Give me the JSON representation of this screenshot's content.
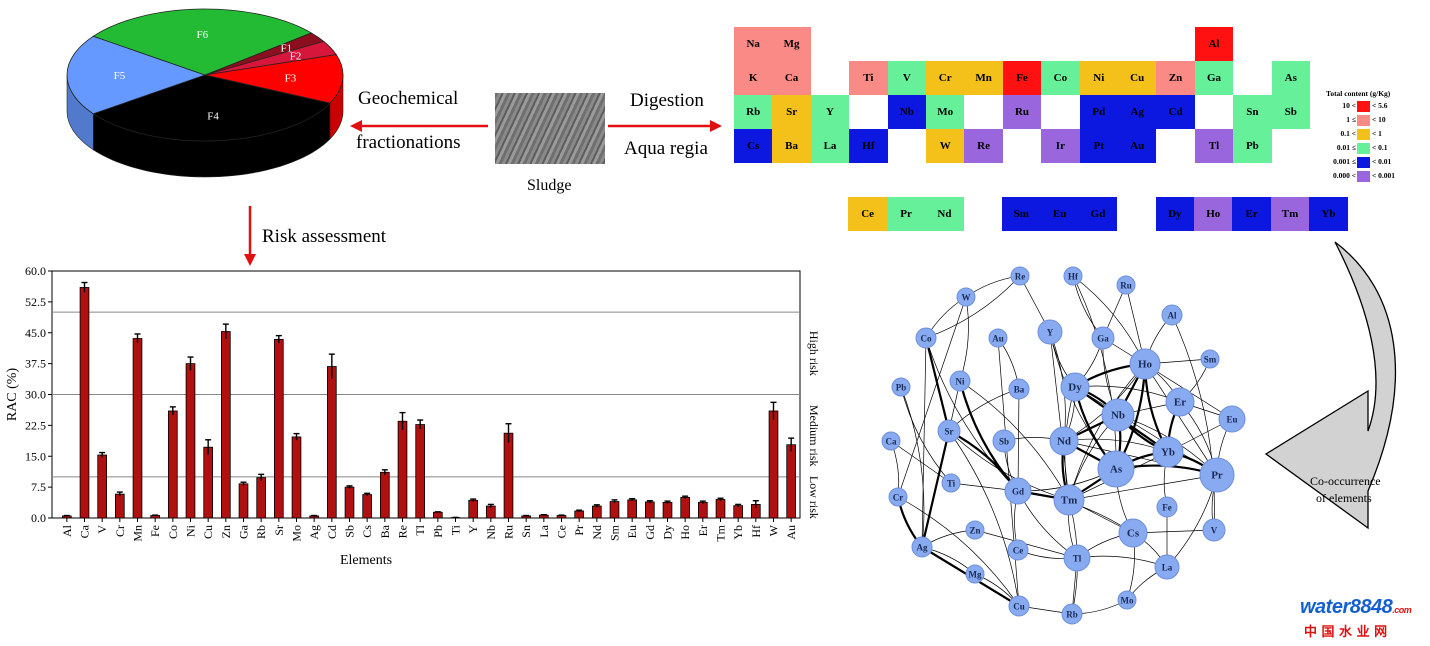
{
  "pie": {
    "slices": [
      {
        "label": "F1",
        "value": 2.5,
        "color": "#8b0f1f"
      },
      {
        "label": "F2",
        "value": 3.5,
        "color": "#d6163a"
      },
      {
        "label": "F3",
        "value": 12,
        "color": "#ff0000"
      },
      {
        "label": "F4",
        "value": 33,
        "color": "#000000"
      },
      {
        "label": "F5",
        "value": 20,
        "color": "#6699ff"
      },
      {
        "label": "F6",
        "value": 29,
        "color": "#22bb33"
      }
    ]
  },
  "flow": {
    "geochem_line1": "Geochemical",
    "geochem_line2": "fractionations",
    "sludge_label": "Sludge",
    "digestion_label": "Digestion",
    "aqua_regia_label": "Aqua regia",
    "risk_assessment_label": "Risk assessment",
    "cooccurrence_line1": "Co-occurrence",
    "cooccurrence_line2": "of elements"
  },
  "periodic_table": {
    "cells": [
      {
        "el": "Na",
        "col": 0,
        "row": 0,
        "cls": "c1"
      },
      {
        "el": "Mg",
        "col": 1,
        "row": 0,
        "cls": "c1"
      },
      {
        "el": "K",
        "col": 0,
        "row": 1,
        "cls": "c1"
      },
      {
        "el": "Ca",
        "col": 1,
        "row": 1,
        "cls": "c1"
      },
      {
        "el": "Ti",
        "col": 3,
        "row": 1,
        "cls": "c1"
      },
      {
        "el": "V",
        "col": 4,
        "row": 1,
        "cls": "c3"
      },
      {
        "el": "Cr",
        "col": 5,
        "row": 1,
        "cls": "c2"
      },
      {
        "el": "Mn",
        "col": 6,
        "row": 1,
        "cls": "c2"
      },
      {
        "el": "Fe",
        "col": 7,
        "row": 1,
        "cls": "c0"
      },
      {
        "el": "Co",
        "col": 8,
        "row": 1,
        "cls": "c3"
      },
      {
        "el": "Ni",
        "col": 9,
        "row": 1,
        "cls": "c2"
      },
      {
        "el": "Cu",
        "col": 10,
        "row": 1,
        "cls": "c2"
      },
      {
        "el": "Zn",
        "col": 11,
        "row": 1,
        "cls": "c1"
      },
      {
        "el": "Al",
        "col": 12,
        "row": 0,
        "cls": "c0"
      },
      {
        "el": "Ga",
        "col": 12,
        "row": 1,
        "cls": "c3"
      },
      {
        "el": "As",
        "col": 14,
        "row": 1,
        "cls": "c3"
      },
      {
        "el": "Rb",
        "col": 0,
        "row": 2,
        "cls": "c3"
      },
      {
        "el": "Sr",
        "col": 1,
        "row": 2,
        "cls": "c2"
      },
      {
        "el": "Y",
        "col": 2,
        "row": 2,
        "cls": "c3"
      },
      {
        "el": "Nb",
        "col": 4,
        "row": 2,
        "cls": "c4"
      },
      {
        "el": "Mo",
        "col": 5,
        "row": 2,
        "cls": "c3"
      },
      {
        "el": "Ru",
        "col": 7,
        "row": 2,
        "cls": "c5"
      },
      {
        "el": "Pd",
        "col": 9,
        "row": 2,
        "cls": "c4"
      },
      {
        "el": "Ag",
        "col": 10,
        "row": 2,
        "cls": "c4"
      },
      {
        "el": "Cd",
        "col": 11,
        "row": 2,
        "cls": "c4"
      },
      {
        "el": "Sn",
        "col": 13,
        "row": 2,
        "cls": "c3"
      },
      {
        "el": "Sb",
        "col": 14,
        "row": 2,
        "cls": "c3"
      },
      {
        "el": "Cs",
        "col": 0,
        "row": 3,
        "cls": "c4"
      },
      {
        "el": "Ba",
        "col": 1,
        "row": 3,
        "cls": "c2"
      },
      {
        "el": "La",
        "col": 2,
        "row": 3,
        "cls": "c3"
      },
      {
        "el": "Hf",
        "col": 3,
        "row": 3,
        "cls": "c4"
      },
      {
        "el": "W",
        "col": 5,
        "row": 3,
        "cls": "c2"
      },
      {
        "el": "Re",
        "col": 6,
        "row": 3,
        "cls": "c5"
      },
      {
        "el": "Ir",
        "col": 8,
        "row": 3,
        "cls": "c5"
      },
      {
        "el": "Pt",
        "col": 9,
        "row": 3,
        "cls": "c4"
      },
      {
        "el": "Au",
        "col": 10,
        "row": 3,
        "cls": "c4"
      },
      {
        "el": "Tl",
        "col": 12,
        "row": 3,
        "cls": "c5"
      },
      {
        "el": "Pb",
        "col": 13,
        "row": 3,
        "cls": "c3"
      }
    ],
    "lanthanides": [
      {
        "el": "Ce",
        "col": 2,
        "cls": "c2"
      },
      {
        "el": "Pr",
        "col": 3,
        "cls": "c3"
      },
      {
        "el": "Nd",
        "col": 4,
        "cls": "c3"
      },
      {
        "el": "Sm",
        "col": 6,
        "cls": "c4"
      },
      {
        "el": "Eu",
        "col": 7,
        "cls": "c4"
      },
      {
        "el": "Gd",
        "col": 8,
        "cls": "c4"
      },
      {
        "el": "Dy",
        "col": 10,
        "cls": "c4"
      },
      {
        "el": "Ho",
        "col": 11,
        "cls": "c5"
      },
      {
        "el": "Er",
        "col": 12,
        "cls": "c4"
      },
      {
        "el": "Tm",
        "col": 13,
        "cls": "c5"
      },
      {
        "el": "Yb",
        "col": 14,
        "cls": "c4"
      }
    ],
    "colors": {
      "c0": "#ff1111",
      "c1": "#f98a86",
      "c2": "#f4c11a",
      "c3": "#66f09a",
      "c4": "#0c18e0",
      "c5": "#9966dd"
    },
    "legend": {
      "title": "Total content (g/Kg)",
      "rows": [
        {
          "left": "10 <",
          "right": "< 5.6",
          "cls": "c0"
        },
        {
          "left": "1 ≤",
          "right": "< 10",
          "cls": "c1"
        },
        {
          "left": "0.1 <",
          "right": "< 1",
          "cls": "c2"
        },
        {
          "left": "0.01 ≤",
          "right": "< 0.1",
          "cls": "c3"
        },
        {
          "left": "0.001 ≤",
          "right": "< 0.01",
          "cls": "c4"
        },
        {
          "left": "0.000 <",
          "right": "< 0.001",
          "cls": "c5"
        }
      ]
    }
  },
  "chart_data": {
    "type": "bar",
    "xlabel": "Elements",
    "ylabel": "RAC (%)",
    "ylim": [
      0,
      60
    ],
    "yticks": [
      "0.0",
      "7.5",
      "15.0",
      "22.5",
      "30.0",
      "37.5",
      "45.0",
      "52.5",
      "60.0"
    ],
    "risk_zones": [
      {
        "label": "Low risk",
        "from": 0,
        "to": 10
      },
      {
        "label": "Medium risk",
        "from": 10,
        "to": 30
      },
      {
        "label": "High risk",
        "from": 30,
        "to": 50
      }
    ],
    "bar_color": "#b01010",
    "categories": [
      "Al",
      "Ca",
      "V",
      "Cr",
      "Mn",
      "Fe",
      "Co",
      "Ni",
      "Cu",
      "Zn",
      "Ga",
      "Rb",
      "Sr",
      "Mo",
      "Ag",
      "Cd",
      "Sb",
      "Cs",
      "Ba",
      "Re",
      "Tl",
      "Pb",
      "Ti",
      "Y",
      "Nb",
      "Ru",
      "Sn",
      "La",
      "Ce",
      "Pr",
      "Nd",
      "Sm",
      "Eu",
      "Gd",
      "Dy",
      "Ho",
      "Er",
      "Tm",
      "Yb",
      "Hf",
      "W",
      "Au"
    ],
    "values": [
      0.5,
      56,
      15.3,
      5.8,
      43.6,
      0.6,
      26,
      37.5,
      17.2,
      45.3,
      8.3,
      9.8,
      43.4,
      19.7,
      0.5,
      36.8,
      7.5,
      5.7,
      11.1,
      23.5,
      22.7,
      1.4,
      0.1,
      4.3,
      2.9,
      20.6,
      0.5,
      0.7,
      0.6,
      1.7,
      2.9,
      4.0,
      4.4,
      3.9,
      3.8,
      5.0,
      3.8,
      4.5,
      3.0,
      3.3,
      26.0,
      17.8
    ],
    "errors": [
      0.1,
      1.2,
      0.6,
      0.5,
      1.1,
      0.1,
      1.0,
      1.6,
      1.8,
      1.8,
      0.4,
      0.8,
      0.9,
      0.8,
      0.1,
      3.0,
      0.3,
      0.3,
      0.6,
      2.1,
      1.1,
      0.1,
      0.05,
      0.3,
      0.4,
      2.3,
      0.1,
      0.1,
      0.1,
      0.2,
      0.3,
      0.4,
      0.3,
      0.3,
      0.3,
      0.3,
      0.3,
      0.3,
      0.3,
      0.9,
      2.1,
      1.6
    ]
  },
  "network": {
    "nodes": [
      {
        "id": "Re",
        "r": 9
      },
      {
        "id": "Hf",
        "r": 9
      },
      {
        "id": "Ru",
        "r": 9
      },
      {
        "id": "W",
        "r": 9
      },
      {
        "id": "Al",
        "r": 10
      },
      {
        "id": "Co",
        "r": 10
      },
      {
        "id": "Au",
        "r": 9
      },
      {
        "id": "Y",
        "r": 12
      },
      {
        "id": "Ga",
        "r": 11
      },
      {
        "id": "Sm",
        "r": 9
      },
      {
        "id": "Ho",
        "r": 15
      },
      {
        "id": "Pb",
        "r": 9
      },
      {
        "id": "Ni",
        "r": 10
      },
      {
        "id": "Ba",
        "r": 10
      },
      {
        "id": "Dy",
        "r": 14
      },
      {
        "id": "Er",
        "r": 14
      },
      {
        "id": "Nb",
        "r": 16
      },
      {
        "id": "Eu",
        "r": 13
      },
      {
        "id": "Sr",
        "r": 11
      },
      {
        "id": "Ca",
        "r": 9
      },
      {
        "id": "Sb",
        "r": 11
      },
      {
        "id": "Nd",
        "r": 14
      },
      {
        "id": "Yb",
        "r": 15
      },
      {
        "id": "As",
        "r": 18
      },
      {
        "id": "Pr",
        "r": 17
      },
      {
        "id": "Ti",
        "r": 9
      },
      {
        "id": "Cr",
        "r": 9
      },
      {
        "id": "Gd",
        "r": 13
      },
      {
        "id": "Tm",
        "r": 15
      },
      {
        "id": "Fe",
        "r": 10
      },
      {
        "id": "Cs",
        "r": 14
      },
      {
        "id": "V",
        "r": 11
      },
      {
        "id": "Zn",
        "r": 9
      },
      {
        "id": "Ag",
        "r": 10
      },
      {
        "id": "Ce",
        "r": 10
      },
      {
        "id": "Tl",
        "r": 13
      },
      {
        "id": "La",
        "r": 12
      },
      {
        "id": "Mg",
        "r": 9
      },
      {
        "id": "Mo",
        "r": 9
      },
      {
        "id": "Cu",
        "r": 10
      },
      {
        "id": "Rb",
        "r": 10
      }
    ]
  },
  "watermark": {
    "brand": "water8848",
    "suffix": ".com",
    "cn": "中 国 水 业 网"
  }
}
